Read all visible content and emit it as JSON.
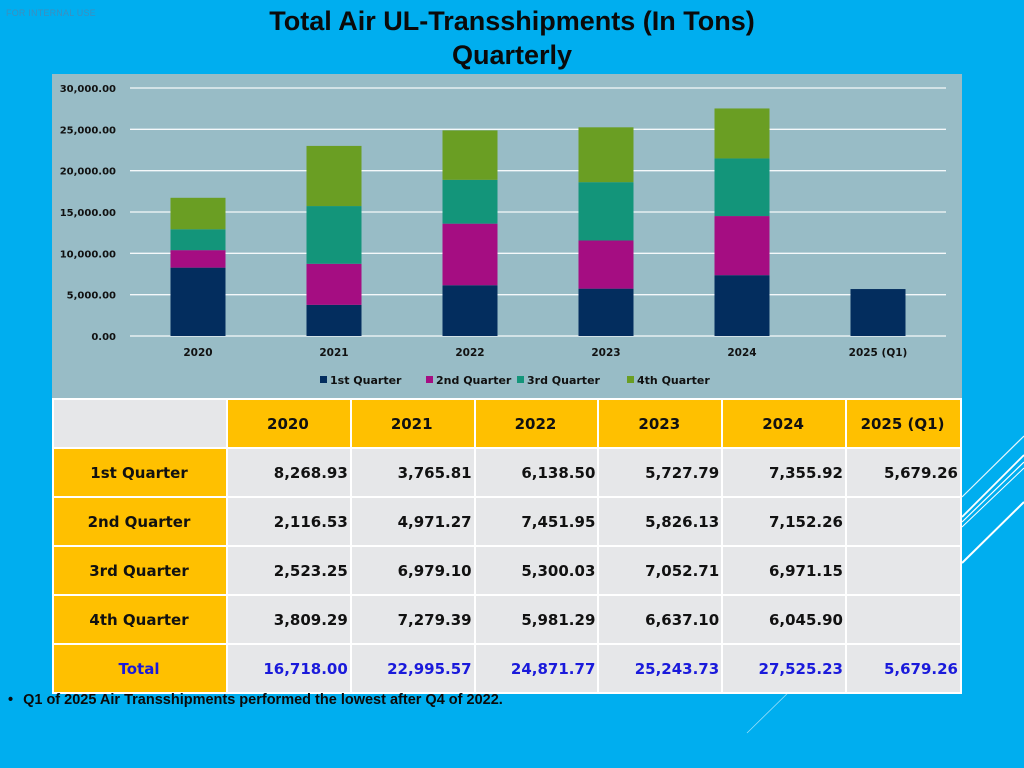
{
  "watermark": "FOR INTERNAL USE",
  "title_line1": "Total Air UL-Transshipments (In Tons)",
  "title_line2": "Quarterly",
  "colors": {
    "q1": "#032d5e",
    "q2": "#a50d82",
    "q3": "#13957a",
    "q4": "#6a9e23",
    "header_bg": "#ffc000",
    "total_text": "#1a1adb",
    "slide_bg": "#00aeef",
    "plot_bg": "#98bcc6"
  },
  "chart_data": {
    "type": "bar",
    "stacked": true,
    "title": "",
    "xlabel": "",
    "ylabel": "",
    "categories": [
      "2020",
      "2021",
      "2022",
      "2023",
      "2024",
      "2025 (Q1)"
    ],
    "series": [
      {
        "name": "1st Quarter",
        "values": [
          8268.93,
          3765.81,
          6138.5,
          5727.79,
          7355.92,
          5679.26
        ]
      },
      {
        "name": "2nd Quarter",
        "values": [
          2116.53,
          4971.27,
          7451.95,
          5826.13,
          7152.26,
          0
        ]
      },
      {
        "name": "3rd Quarter",
        "values": [
          2523.25,
          6979.1,
          5300.03,
          7052.71,
          6971.15,
          0
        ]
      },
      {
        "name": "4th Quarter",
        "values": [
          3809.29,
          7279.39,
          5981.29,
          6637.1,
          6045.9,
          0
        ]
      }
    ],
    "ylim": [
      0,
      30000
    ],
    "yticks": [
      "0.00",
      "5,000.00",
      "10,000.00",
      "15,000.00",
      "20,000.00",
      "25,000.00",
      "30,000.00"
    ],
    "ytick_values": [
      0,
      5000,
      10000,
      15000,
      20000,
      25000,
      30000
    ],
    "grid": true,
    "legend_position": "bottom"
  },
  "table": {
    "corner": "",
    "headers": [
      "2020",
      "2021",
      "2022",
      "2023",
      "2024",
      "2025 (Q1)"
    ],
    "rows": [
      {
        "label": "1st Quarter",
        "cells": [
          "8,268.93",
          "3,765.81",
          "6,138.50",
          "5,727.79",
          "7,355.92",
          "5,679.26"
        ]
      },
      {
        "label": "2nd Quarter",
        "cells": [
          "2,116.53",
          "4,971.27",
          "7,451.95",
          "5,826.13",
          "7,152.26",
          ""
        ]
      },
      {
        "label": "3rd Quarter",
        "cells": [
          "2,523.25",
          "6,979.10",
          "5,300.03",
          "7,052.71",
          "6,971.15",
          ""
        ]
      },
      {
        "label": "4th Quarter",
        "cells": [
          "3,809.29",
          "7,279.39",
          "5,981.29",
          "6,637.10",
          "6,045.90",
          ""
        ]
      },
      {
        "label": "Total",
        "cells": [
          "16,718.00",
          "22,995.57",
          "24,871.77",
          "25,243.73",
          "27,525.23",
          "5,679.26"
        ],
        "is_total": true
      }
    ]
  },
  "note": {
    "bullet": "•",
    "text": "Q1 of 2025 Air Transshipments performed the lowest after Q4 of 2022."
  }
}
